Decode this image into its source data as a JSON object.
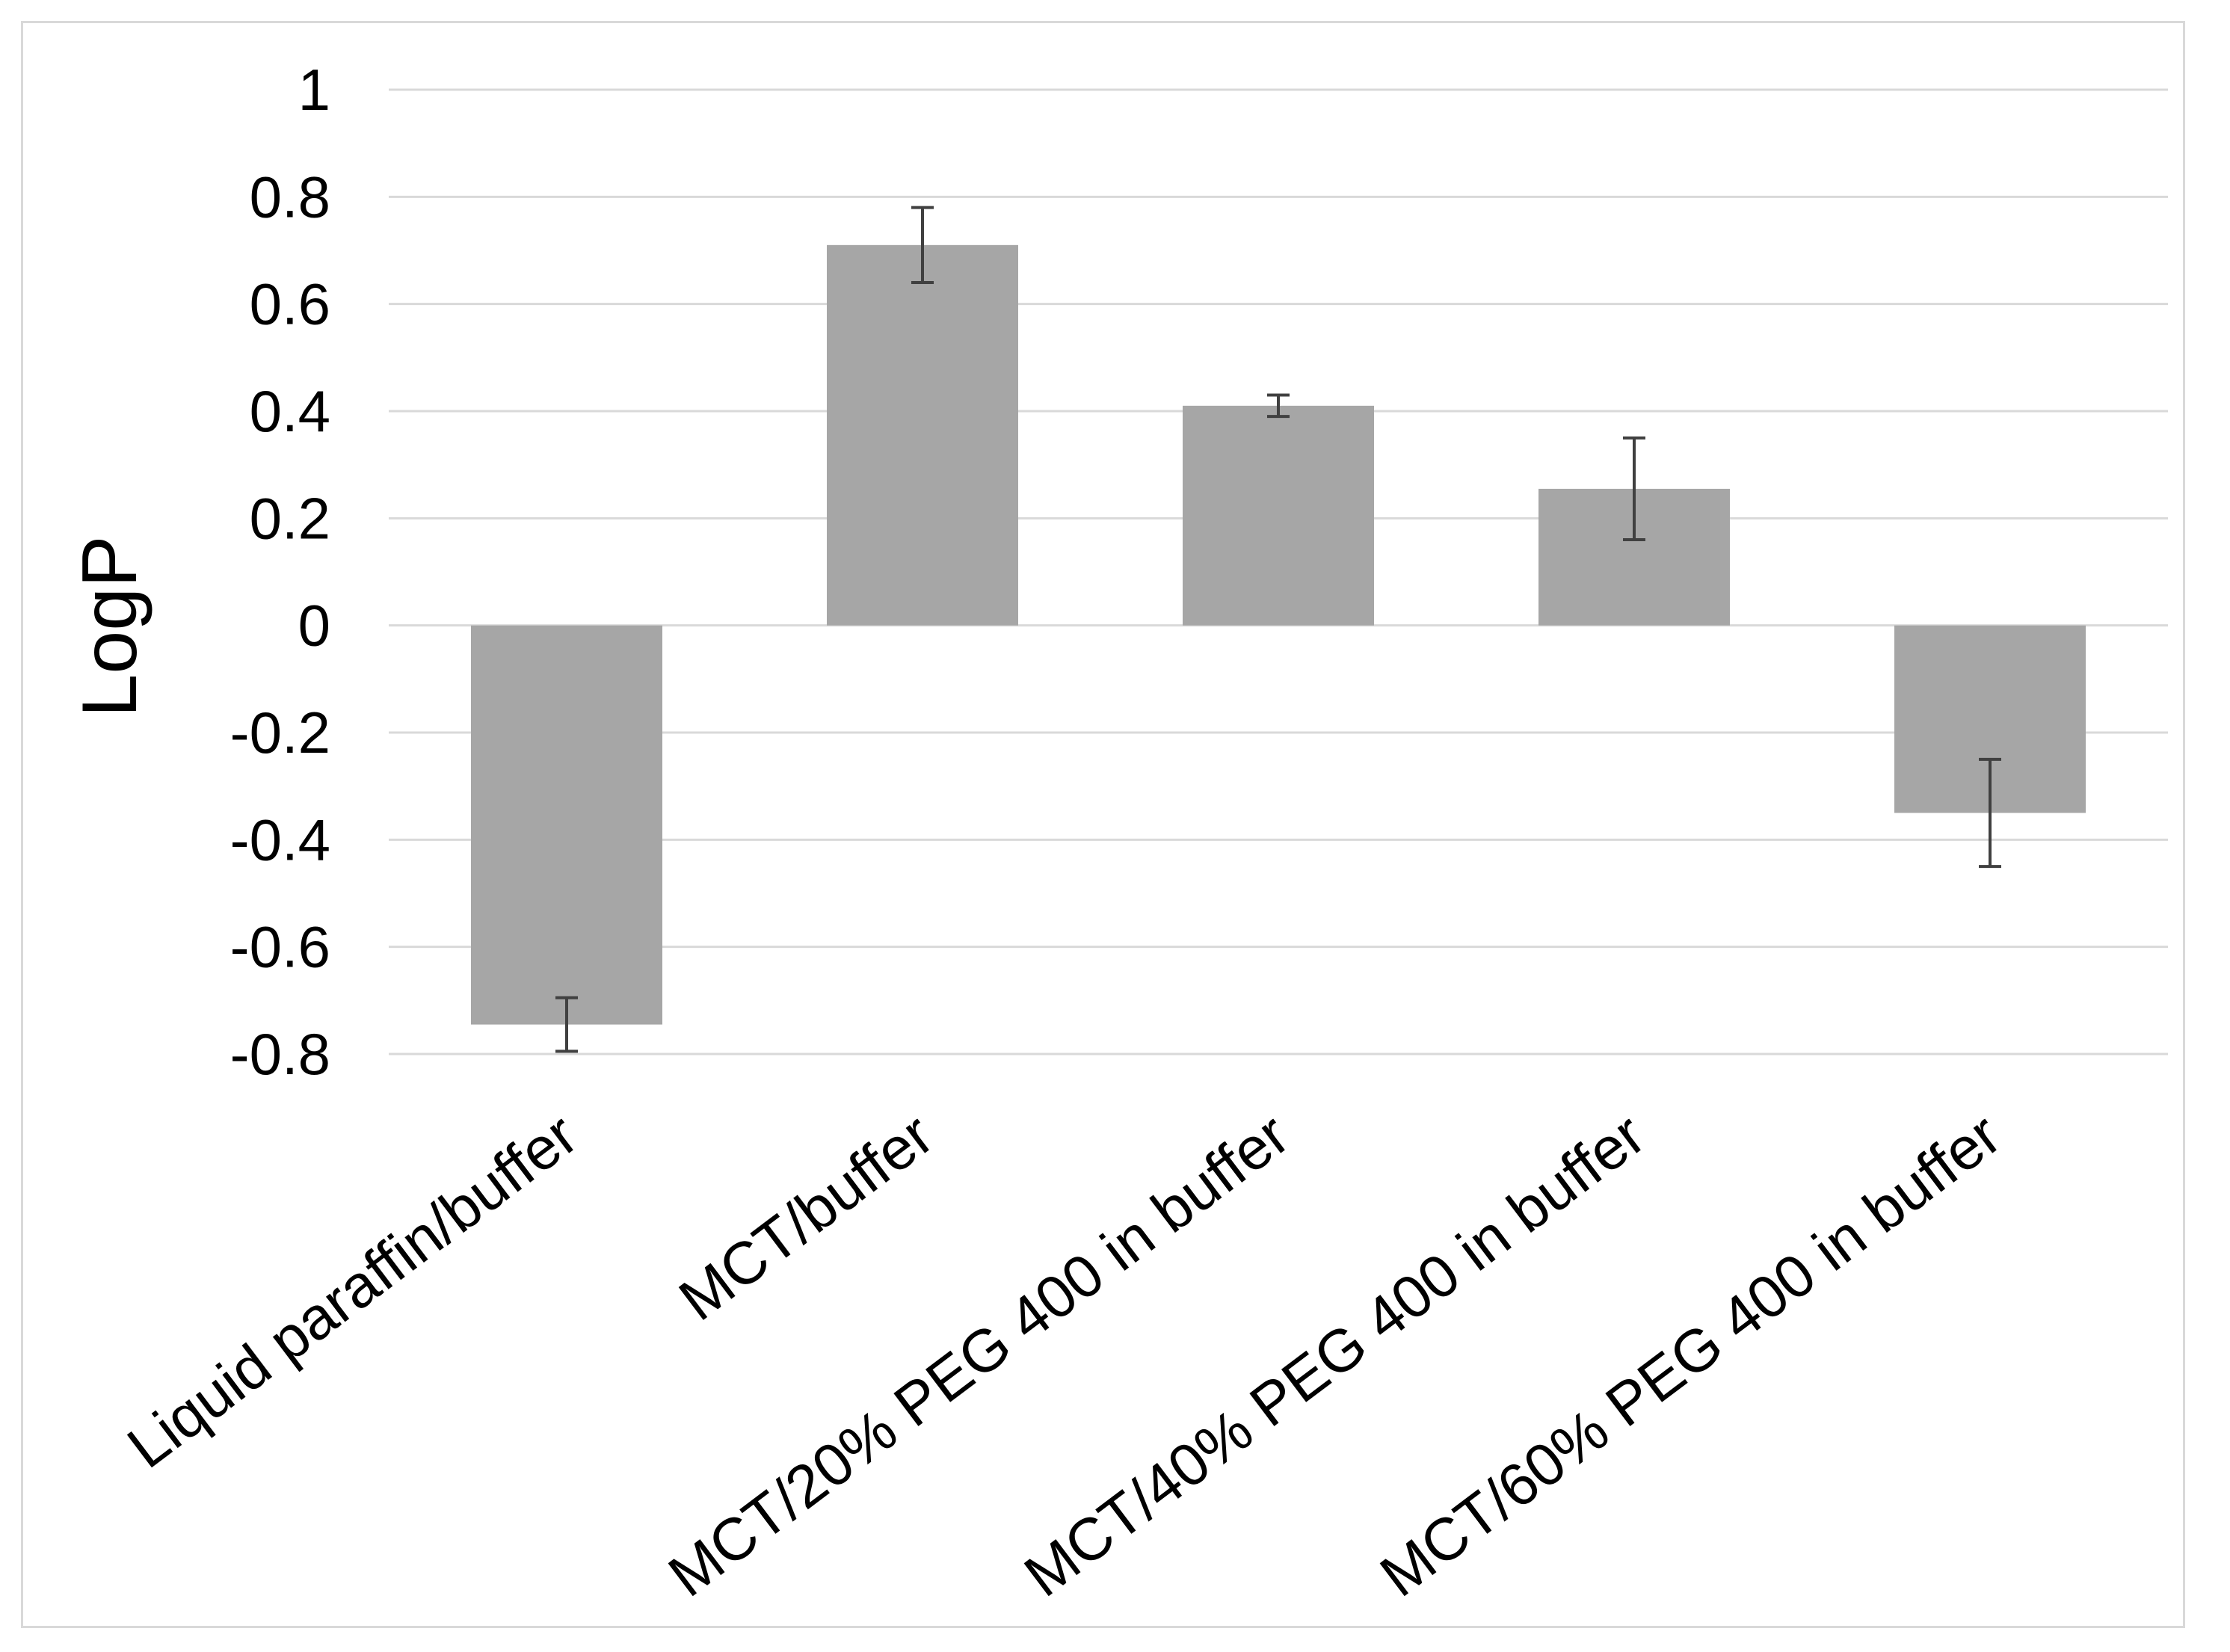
{
  "chart_data": {
    "type": "bar",
    "title": "",
    "xlabel": "",
    "ylabel": "LogP",
    "ylim": [
      -0.8,
      1
    ],
    "yticks": [
      1,
      0.8,
      0.6,
      0.4,
      0.2,
      0,
      -0.2,
      -0.4,
      -0.6,
      -0.8
    ],
    "ytick_labels": [
      "1",
      "0.8",
      "0.6",
      "0.4",
      "0.2",
      "0",
      "-0.2",
      "-0.4",
      "-0.6",
      "-0.8"
    ],
    "grid": true,
    "legend": "none",
    "categories": [
      "Liquid paraffin/buffer",
      "MCT/buffer",
      "MCT/20% PEG 400 in buffer",
      "MCT/40% PEG 400 in buffer",
      "MCT/60% PEG 400 in buffer"
    ],
    "values": [
      -0.745,
      0.71,
      0.41,
      0.255,
      -0.35
    ],
    "error": [
      0.05,
      0.07,
      0.02,
      0.095,
      0.1
    ],
    "colors": {
      "bar": "#a6a6a6",
      "gridline": "#d9d9d9",
      "errorbar": "#404040",
      "text": "#000000"
    }
  }
}
